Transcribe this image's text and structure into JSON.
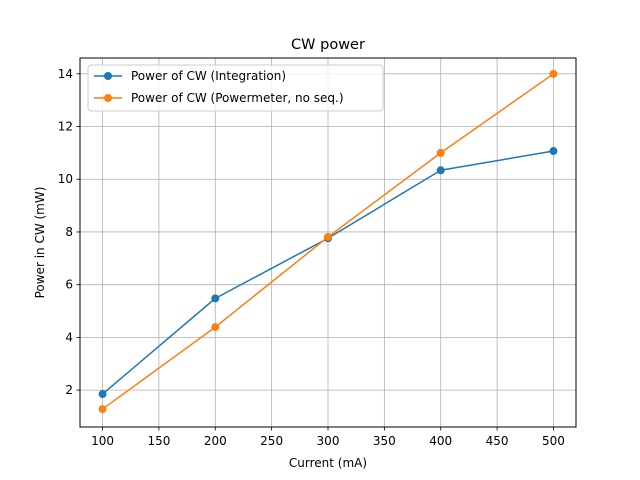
{
  "chart_data": {
    "type": "line",
    "title": "CW power",
    "xlabel": "Current (mA)",
    "ylabel": "Power in CW (mW)",
    "x": [
      100,
      200,
      300,
      400,
      500
    ],
    "series": [
      {
        "name": "Power of CW (Integration)",
        "color": "#1f77b4",
        "values": [
          1.85,
          5.48,
          7.76,
          10.34,
          11.07
        ]
      },
      {
        "name": "Power of CW (Powermeter, no seq.)",
        "color": "#ff7f0e",
        "values": [
          1.28,
          4.39,
          7.81,
          11.0,
          14.0
        ]
      }
    ],
    "xlim": [
      80,
      520
    ],
    "ylim": [
      0.6,
      14.6
    ],
    "xticks": [
      100,
      150,
      200,
      250,
      300,
      350,
      400,
      450,
      500
    ],
    "yticks": [
      2,
      4,
      6,
      8,
      10,
      12,
      14
    ],
    "grid": true,
    "legend": "upper left",
    "marker": "circle"
  }
}
